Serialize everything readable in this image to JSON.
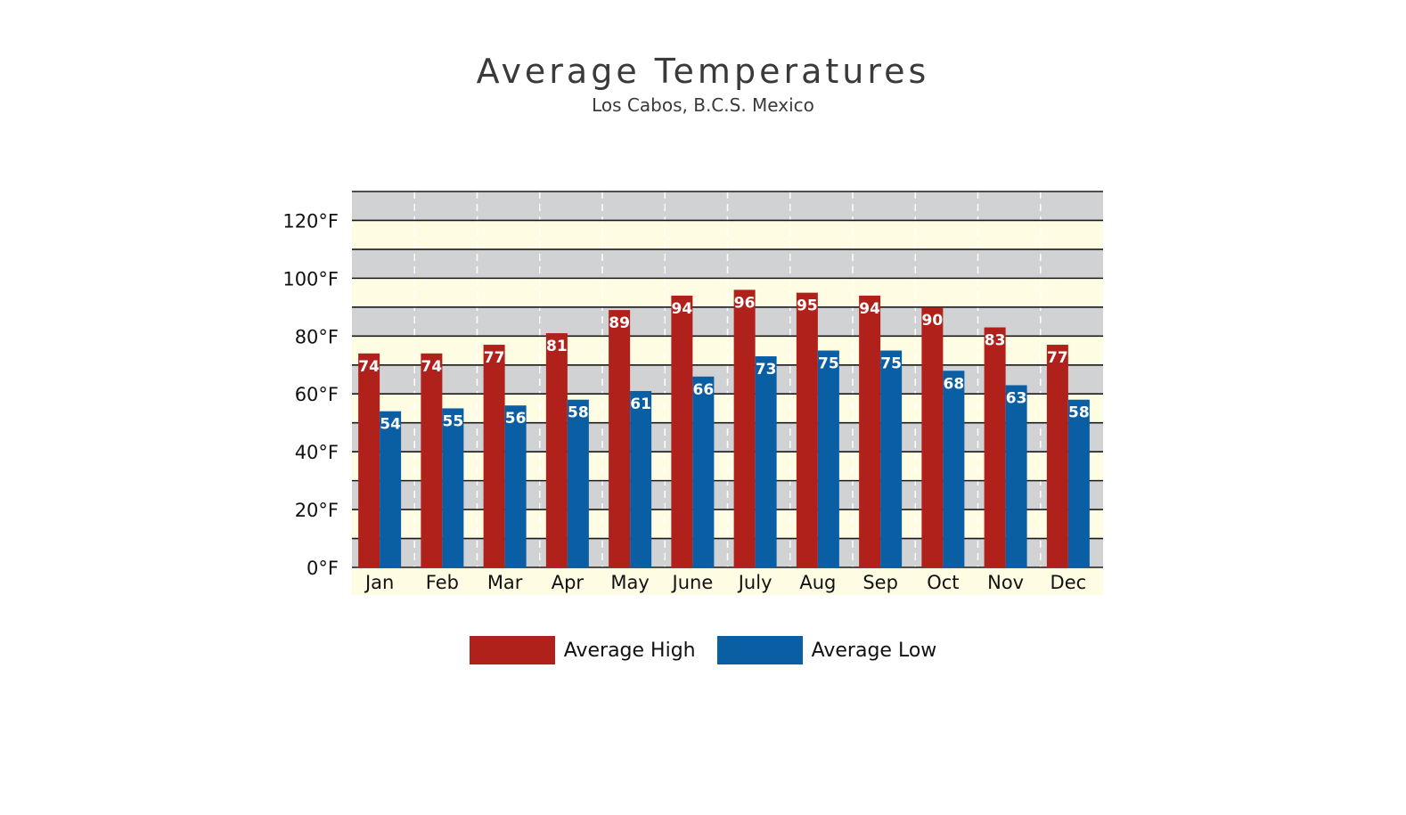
{
  "chart_data": {
    "type": "bar",
    "title": "Average Temperatures",
    "subtitle": "Los Cabos, B.C.S. Mexico",
    "categories": [
      "Jan",
      "Feb",
      "Mar",
      "Apr",
      "May",
      "June",
      "July",
      "Aug",
      "Sep",
      "Oct",
      "Nov",
      "Dec"
    ],
    "series": [
      {
        "name": "Average High",
        "color": "#b0211c",
        "values": [
          74,
          74,
          77,
          81,
          89,
          94,
          96,
          95,
          94,
          90,
          83,
          77
        ]
      },
      {
        "name": "Average Low",
        "color": "#0a5ea3",
        "values": [
          54,
          55,
          56,
          58,
          61,
          66,
          73,
          75,
          75,
          68,
          63,
          58
        ]
      }
    ],
    "ylim": [
      0,
      130
    ],
    "yticks": [
      "0°F",
      "20°F",
      "40°F",
      "60°F",
      "80°F",
      "100°F",
      "120°F"
    ],
    "ytick_values": [
      0,
      20,
      40,
      60,
      80,
      100,
      120
    ],
    "band_colors": [
      "#d1d2d4",
      "#fefde4"
    ],
    "grid": true,
    "legend_position": "bottom"
  }
}
